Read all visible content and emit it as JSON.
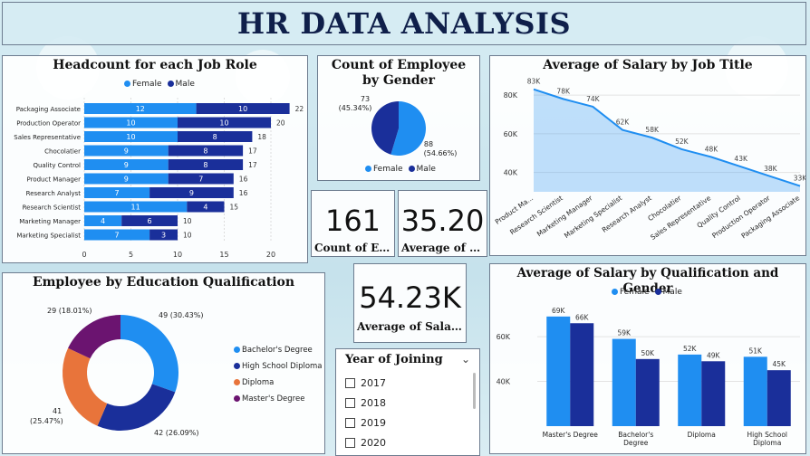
{
  "header": {
    "title": "HR DATA ANALYSIS"
  },
  "colors": {
    "female": "#1f8ef1",
    "male": "#1a2f9a",
    "bachelors": "#1f8ef1",
    "highschool": "#1a2f9a",
    "diploma": "#e8743b",
    "masters": "#6b1470",
    "line": "#1f8ef1"
  },
  "headcount": {
    "title": "Headcount for each Job Role",
    "legend": [
      "Female",
      "Male"
    ],
    "chart_data": {
      "type": "bar",
      "orientation": "horizontal-stacked",
      "categories": [
        "Packaging Associate",
        "Production Operator",
        "Sales Representative",
        "Chocolatier",
        "Quality Control",
        "Product Manager",
        "Research Analyst",
        "Research Scientist",
        "Marketing Manager",
        "Marketing Specialist"
      ],
      "series": [
        {
          "name": "Female",
          "values": [
            12,
            10,
            10,
            9,
            9,
            9,
            7,
            11,
            4,
            7
          ]
        },
        {
          "name": "Male",
          "values": [
            10,
            10,
            8,
            8,
            8,
            7,
            9,
            4,
            6,
            3
          ]
        }
      ],
      "totals": [
        22,
        20,
        18,
        17,
        17,
        16,
        16,
        15,
        10,
        10
      ],
      "xticks": [
        0,
        5,
        10,
        15,
        20
      ],
      "xlim": [
        0,
        23
      ]
    }
  },
  "gender": {
    "title": "Count of Employee by Gender",
    "legend": [
      "Female",
      "Male"
    ],
    "labels": {
      "male": "73",
      "male_pct": "(45.34%)",
      "female": "88",
      "female_pct": "(54.66%)"
    },
    "chart_data": {
      "type": "pie",
      "categories": [
        "Female",
        "Male"
      ],
      "values": [
        88,
        73
      ]
    }
  },
  "salary_title": {
    "title": "Average of Salary by Job Title",
    "chart_data": {
      "type": "area",
      "categories": [
        "Product Ma...",
        "Research Scientist",
        "Marketing Manager",
        "Marketing Specialist",
        "Research Analyst",
        "Chocolatier",
        "Sales Representative",
        "Quality Control",
        "Production Operator",
        "Packaging Associate"
      ],
      "values": [
        83,
        78,
        74,
        62,
        58,
        52,
        48,
        43,
        38,
        33
      ],
      "value_labels": [
        "83K",
        "78K",
        "74K",
        "62K",
        "58K",
        "52K",
        "48K",
        "43K",
        "38K",
        "33K"
      ],
      "yticks": [
        "40K",
        "60K",
        "80K"
      ],
      "ytick_values": [
        40,
        60,
        80
      ],
      "ylim": [
        30,
        88
      ]
    }
  },
  "kpis": [
    {
      "value": "161",
      "label": "Count of Emp..."
    },
    {
      "value": "35.20",
      "label": "Average of Age"
    },
    {
      "value": "54.23K",
      "label": "Average of Salary"
    }
  ],
  "education": {
    "title": "Employee by Education Qualification",
    "legend": [
      "Bachelor's Degree",
      "High School Diploma",
      "Diploma",
      "Master's Degree"
    ],
    "labels": [
      {
        "value": "49",
        "pct": "(30.43%)"
      },
      {
        "value": "42",
        "pct": "(26.09%)"
      },
      {
        "value": "41",
        "pct": "(25.47%)"
      },
      {
        "value": "29",
        "pct": "(18.01%)"
      }
    ],
    "chart_data": {
      "type": "pie",
      "donut": true,
      "categories": [
        "Bachelor's Degree",
        "High School Diploma",
        "Diploma",
        "Master's Degree"
      ],
      "values": [
        49,
        42,
        41,
        29
      ]
    }
  },
  "slicer": {
    "title": "Year of Joining",
    "items": [
      "2017",
      "2018",
      "2019",
      "2020"
    ]
  },
  "qual_gender": {
    "title": "Average of Salary by Qualification and Gender",
    "legend": [
      "Female",
      "Male"
    ],
    "chart_data": {
      "type": "bar",
      "categories": [
        "Master's Degree",
        "Bachelor's Degree",
        "Diploma",
        "High School Diploma"
      ],
      "category_lines": [
        [
          "Master's Degree"
        ],
        [
          "Bachelor's",
          "Degree"
        ],
        [
          "Diploma"
        ],
        [
          "High School",
          "Diploma"
        ]
      ],
      "series": [
        {
          "name": "Female",
          "values": [
            69,
            59,
            52,
            51
          ],
          "labels": [
            "69K",
            "59K",
            "52K",
            "51K"
          ]
        },
        {
          "name": "Male",
          "values": [
            66,
            50,
            49,
            45
          ],
          "labels": [
            "66K",
            "50K",
            "49K",
            "45K"
          ]
        }
      ],
      "yticks": [
        "40K",
        "60K"
      ],
      "ytick_values": [
        40,
        60
      ],
      "ylim": [
        20,
        75
      ]
    }
  }
}
